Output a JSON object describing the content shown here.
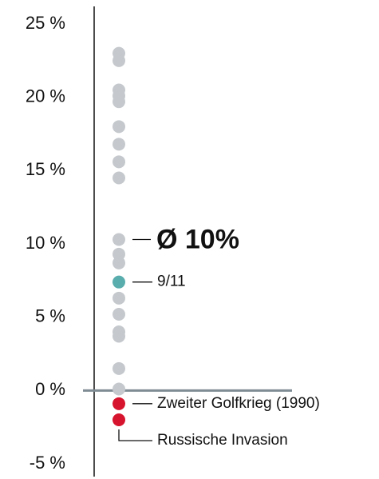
{
  "chart_data": {
    "type": "strip",
    "values": [
      23.0,
      22.5,
      20.5,
      20.1,
      19.7,
      18.0,
      16.8,
      15.6,
      14.5,
      10.3,
      9.3,
      8.7,
      7.4,
      6.3,
      5.2,
      4.0,
      3.7,
      1.5,
      0.1,
      -0.9,
      -2.0
    ],
    "point_colors": [
      "#c5c9cd",
      "#c5c9cd",
      "#c5c9cd",
      "#c5c9cd",
      "#c5c9cd",
      "#c5c9cd",
      "#c5c9cd",
      "#c5c9cd",
      "#c5c9cd",
      "#c5c9cd",
      "#c5c9cd",
      "#c5c9cd",
      "#5aadad",
      "#c5c9cd",
      "#c5c9cd",
      "#c5c9cd",
      "#c5c9cd",
      "#c5c9cd",
      "#c5c9cd",
      "#d7142d",
      "#d7142d"
    ],
    "ylim": [
      -5,
      25
    ],
    "yticks": [
      {
        "value": 25,
        "label": "25 %"
      },
      {
        "value": 20,
        "label": "20 %"
      },
      {
        "value": 15,
        "label": "15 %"
      },
      {
        "value": 10,
        "label": "10 %"
      },
      {
        "value": 5,
        "label": "5 %"
      },
      {
        "value": 0,
        "label": "0 %"
      },
      {
        "value": -5,
        "label": "-5 %"
      }
    ],
    "annotations": [
      {
        "text": "Ø 10%",
        "y": 10.3,
        "emphasis": true
      },
      {
        "text": "9/11",
        "y": 7.4
      },
      {
        "text": "Zweiter Golfkrieg (1990)",
        "y": -0.9
      },
      {
        "text": "Russische Invasion",
        "y": -2.0,
        "connector": "elbow"
      }
    ]
  }
}
